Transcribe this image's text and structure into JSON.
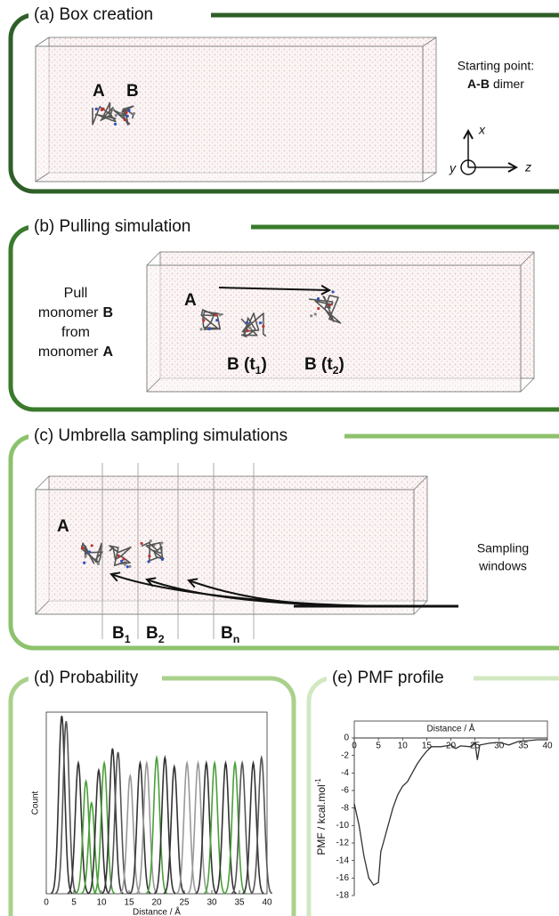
{
  "panel_a": {
    "title": "(a) Box creation",
    "label_a": "A",
    "label_b": "B",
    "note_line1": "Starting point:",
    "note_bold": "A-B",
    "note_rest": "dimer",
    "axis_x": "x",
    "axis_y": "y",
    "axis_z": "z"
  },
  "panel_b": {
    "title": "(b) Pulling simulation",
    "lines": [
      [
        "Pull"
      ],
      [
        "monomer",
        "B"
      ],
      [
        "from"
      ],
      [
        "monomer",
        "A"
      ]
    ],
    "label_a": "A",
    "label_t1": [
      "B (t",
      "1",
      ")"
    ],
    "label_t2": [
      "B (t",
      "2",
      ")"
    ]
  },
  "panel_c": {
    "title": "(c) Umbrella sampling simulations",
    "label_a": "A",
    "windows": [
      [
        "B",
        "1"
      ],
      [
        "B",
        "2"
      ],
      [
        "B",
        "n"
      ]
    ],
    "note": [
      "Sampling",
      "windows"
    ]
  },
  "panel_d": {
    "title": "(d) Probability",
    "xlabel": "Distance / Å",
    "ylabel": "Count",
    "xlim": [
      0,
      40
    ],
    "xticks": [
      0,
      5,
      10,
      15,
      20,
      25,
      30,
      35,
      40
    ],
    "ylim": [
      0,
      1
    ],
    "peaks": [
      {
        "x": 2.8,
        "height": 0.98,
        "color": "#333333"
      },
      {
        "x": 3.6,
        "height": 0.95,
        "color": "#555555"
      },
      {
        "x": 5.8,
        "height": 0.72,
        "color": "#333333"
      },
      {
        "x": 7.2,
        "height": 0.62,
        "color": "#4aa03a"
      },
      {
        "x": 8.2,
        "height": 0.5,
        "color": "#4aa03a"
      },
      {
        "x": 9.5,
        "height": 0.68,
        "color": "#333333"
      },
      {
        "x": 10.5,
        "height": 0.72,
        "color": "#4aa03a"
      },
      {
        "x": 12,
        "height": 0.8,
        "color": "#333333"
      },
      {
        "x": 13,
        "height": 0.78,
        "color": "#555555"
      },
      {
        "x": 15.2,
        "height": 0.65,
        "color": "#999999"
      },
      {
        "x": 17,
        "height": 0.72,
        "color": "#333333"
      },
      {
        "x": 18.2,
        "height": 0.72,
        "color": "#999999"
      },
      {
        "x": 20,
        "height": 0.75,
        "color": "#4aa03a"
      },
      {
        "x": 21.5,
        "height": 0.75,
        "color": "#333333"
      },
      {
        "x": 23.2,
        "height": 0.7,
        "color": "#333333"
      },
      {
        "x": 25.5,
        "height": 0.72,
        "color": "#999999"
      },
      {
        "x": 27.5,
        "height": 0.72,
        "color": "#999999"
      },
      {
        "x": 29,
        "height": 0.72,
        "color": "#333333"
      },
      {
        "x": 30.5,
        "height": 0.72,
        "color": "#4aa03a"
      },
      {
        "x": 32.5,
        "height": 0.72,
        "color": "#333333"
      },
      {
        "x": 34.2,
        "height": 0.72,
        "color": "#4aa03a"
      },
      {
        "x": 35.5,
        "height": 0.72,
        "color": "#555555"
      },
      {
        "x": 37.5,
        "height": 0.72,
        "color": "#333333"
      },
      {
        "x": 39,
        "height": 0.75,
        "color": "#555555"
      }
    ]
  },
  "panel_e": {
    "title": "(e) PMF profile",
    "xlabel": "Distance / Å",
    "ylabel": [
      "PMF / kcal.mol",
      "-1"
    ],
    "xlim": [
      0,
      40
    ],
    "xticks": [
      0,
      5,
      10,
      15,
      20,
      25,
      30,
      35,
      40
    ],
    "ylim": [
      -18,
      0
    ],
    "yticks": [
      0,
      -2,
      -4,
      -6,
      -8,
      -10,
      -12,
      -14,
      -16,
      -18
    ],
    "curve": {
      "color": "#333333",
      "x": [
        0,
        1,
        2,
        3,
        4,
        5,
        5.5,
        6,
        7,
        8,
        9,
        10,
        11,
        12,
        13,
        14,
        15,
        16,
        18,
        20,
        21,
        22,
        24,
        25,
        25.5,
        26,
        28,
        30,
        32,
        34,
        36,
        38,
        40
      ],
      "y": [
        -7.5,
        -10,
        -13.5,
        -16,
        -16.8,
        -16.5,
        -13,
        -12,
        -10,
        -8,
        -6.5,
        -5.5,
        -5,
        -4,
        -3,
        -2.2,
        -1.5,
        -1,
        -1,
        -0.8,
        -1.2,
        -0.9,
        -1,
        -0.5,
        -2.5,
        -0.8,
        -0.6,
        -0.5,
        -0.8,
        -0.4,
        -0.3,
        -0.2,
        -0.2
      ]
    }
  }
}
